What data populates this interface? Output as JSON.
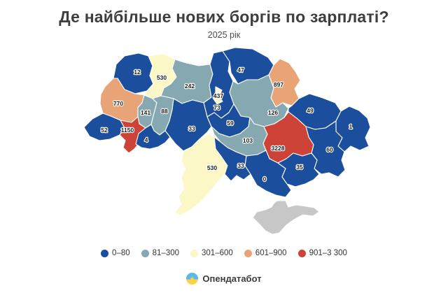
{
  "header": {
    "title": "Де найбільше нових боргів по зарплаті?",
    "subtitle": "2025 рік"
  },
  "footer": {
    "brand": "Опендатабот"
  },
  "chart_data": {
    "type": "choropleth",
    "title": "Де найбільше нових боргів по зарплаті?",
    "subtitle": "2025 рік",
    "legend_position": "bottom",
    "no_data_color": "#c7c7c7",
    "border_color": "#ffffff",
    "label_color": "#1d1d1d",
    "legend": [
      {
        "label": "0–80",
        "color": "#1b4f9d"
      },
      {
        "label": "81–300",
        "color": "#85a8b1"
      },
      {
        "label": "301–600",
        "color": "#fbf7c6"
      },
      {
        "label": "601–900",
        "color": "#e8a377"
      },
      {
        "label": "901–3 300",
        "color": "#cd4338"
      }
    ],
    "regions": [
      {
        "id": "volyn",
        "value": 12,
        "bucket": 0
      },
      {
        "id": "rivne",
        "value": 530,
        "bucket": 2
      },
      {
        "id": "zhytomyr",
        "value": 242,
        "bucket": 1
      },
      {
        "id": "kyiv-oblast",
        "value": 73,
        "bucket": 0
      },
      {
        "id": "kyiv-city",
        "value": 437,
        "bucket": 2
      },
      {
        "id": "chernihiv",
        "value": 47,
        "bucket": 0
      },
      {
        "id": "sumy",
        "value": 897,
        "bucket": 3
      },
      {
        "id": "poltava",
        "value": 126,
        "bucket": 1
      },
      {
        "id": "kharkiv",
        "value": 49,
        "bucket": 0
      },
      {
        "id": "luhansk",
        "value": 1,
        "bucket": 0
      },
      {
        "id": "donetsk",
        "value": 60,
        "bucket": 0
      },
      {
        "id": "lviv",
        "value": 770,
        "bucket": 3
      },
      {
        "id": "ternopil",
        "value": 141,
        "bucket": 1
      },
      {
        "id": "khmelnytskyi",
        "value": 88,
        "bucket": 1
      },
      {
        "id": "vinnytsia",
        "value": 33,
        "bucket": 0
      },
      {
        "id": "cherkasy",
        "value": 59,
        "bucket": 0
      },
      {
        "id": "kirovohrad",
        "value": 103,
        "bucket": 1
      },
      {
        "id": "dnipropetrovsk",
        "value": 3228,
        "bucket": 4
      },
      {
        "id": "zakarpattia",
        "value": 52,
        "bucket": 0
      },
      {
        "id": "ivano-frankivsk",
        "value": 1150,
        "bucket": 4
      },
      {
        "id": "chernivtsi",
        "value": 4,
        "bucket": 0
      },
      {
        "id": "odesa",
        "value": 530,
        "bucket": 2
      },
      {
        "id": "mykolaiv",
        "value": 33,
        "bucket": 0
      },
      {
        "id": "kherson",
        "value": 0,
        "bucket": 0
      },
      {
        "id": "zaporizhzhia",
        "value": 35,
        "bucket": 0
      }
    ],
    "no_data_regions": [
      {
        "id": "crimea"
      }
    ]
  }
}
